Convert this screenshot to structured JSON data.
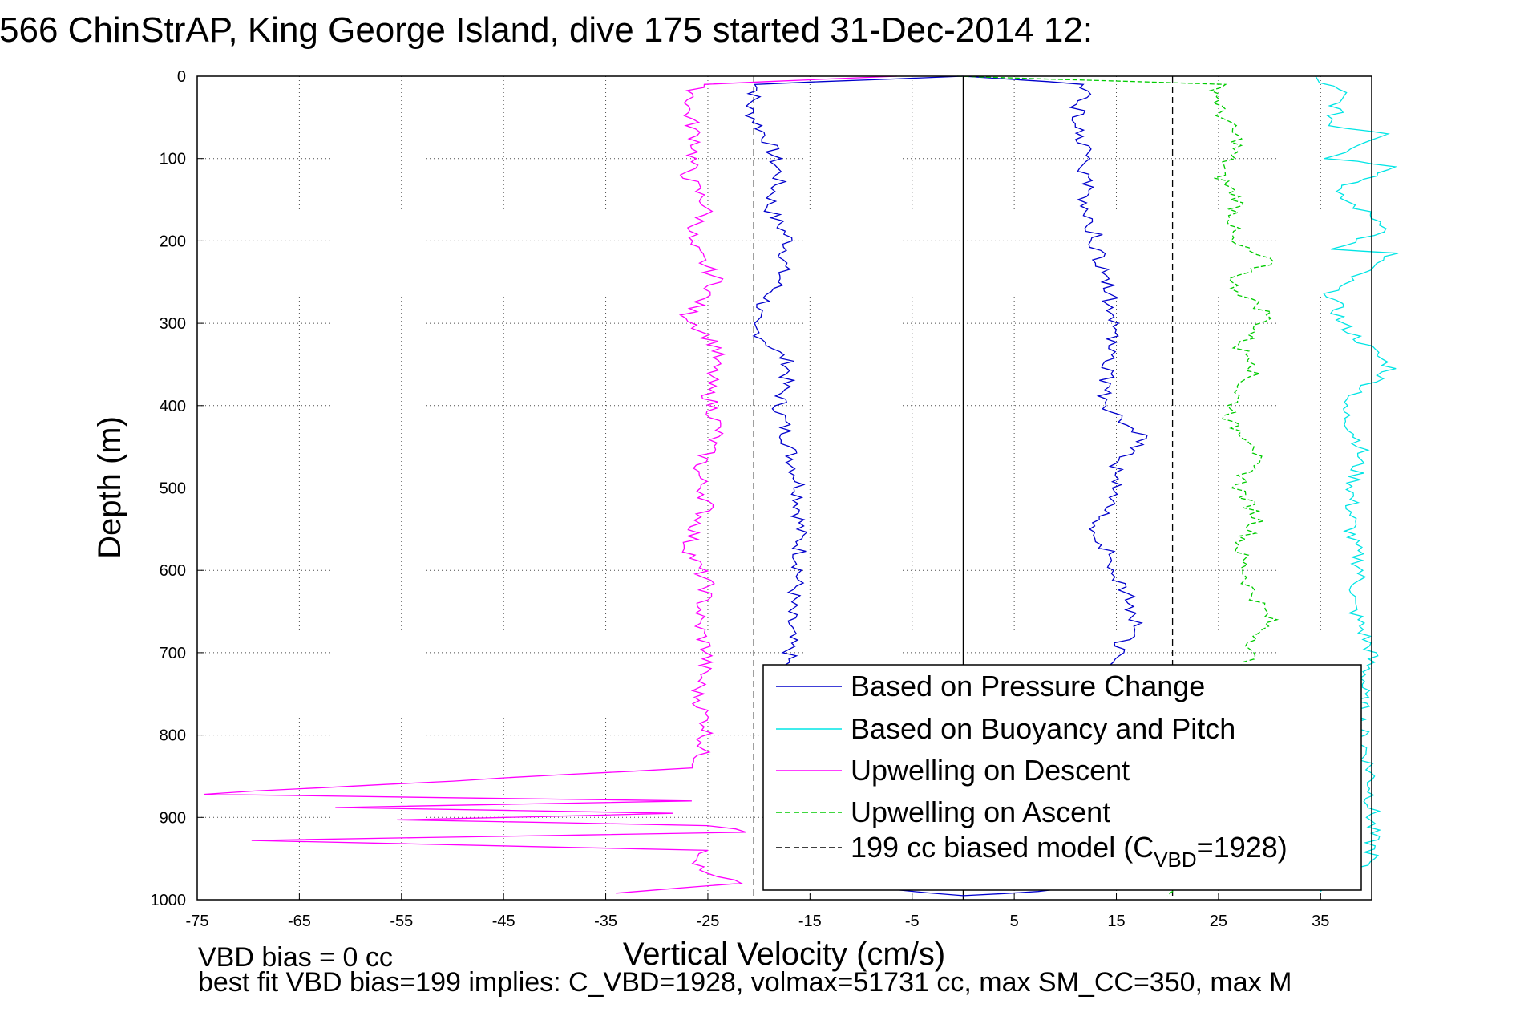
{
  "title": "566 ChinStrAP, King George Island, dive 175 started 31-Dec-2014 12:",
  "footnotes": {
    "line1": "VBD bias = 0 cc",
    "line2": "best fit VBD bias=199 implies: C_VBD=1928, volmax=51731 cc, max SM_CC=350, max M"
  },
  "chart_data": {
    "type": "line",
    "title": "566 ChinStrAP, King George Island, dive 175 started 31-Dec-2014 12:",
    "xlabel": "Vertical Velocity (cm/s)",
    "ylabel": "Depth (m)",
    "xlim": [
      -75,
      40
    ],
    "ylim": [
      0,
      1000
    ],
    "y_reversed": true,
    "grid": true,
    "legend_position": "bottom-right",
    "x_ticks": [
      -75,
      -65,
      -55,
      -45,
      -35,
      -25,
      -15,
      -5,
      5,
      15,
      25,
      35
    ],
    "y_ticks": [
      0,
      100,
      200,
      300,
      400,
      500,
      600,
      700,
      800,
      900,
      1000
    ],
    "reference_lines": [
      {
        "x": 0,
        "style": "solid",
        "color": "#000000"
      },
      {
        "x": -20.5,
        "style": "dashed",
        "color": "#000000"
      },
      {
        "x": 20.5,
        "style": "dashed",
        "color": "#000000"
      }
    ],
    "legend": [
      {
        "label": "Based on Pressure Change",
        "color": "#0000cc",
        "dash": "solid"
      },
      {
        "label": "Based on Buoyancy and Pitch",
        "color": "#00e5e5",
        "dash": "solid"
      },
      {
        "label": "Upwelling on Descent",
        "color": "#ff00ff",
        "dash": "solid"
      },
      {
        "label": "Upwelling on Ascent",
        "color": "#00cc00",
        "dash": "dashed"
      },
      {
        "label": "199 cc biased model (C",
        "sub": "VBD",
        "label_end": "=1928)",
        "color": "#000000",
        "dash": "dashed"
      }
    ],
    "series": [
      {
        "name": "Based on Pressure Change",
        "color": "#0000cc",
        "dash": "solid",
        "points": [
          [
            0,
            0
          ],
          [
            -20,
            10
          ],
          [
            -21,
            40
          ],
          [
            -19,
            80
          ],
          [
            -18,
            120
          ],
          [
            -19,
            160
          ],
          [
            -17,
            200
          ],
          [
            -18,
            250
          ],
          [
            -21,
            300
          ],
          [
            -17,
            350
          ],
          [
            -18,
            400
          ],
          [
            -17,
            450
          ],
          [
            -16,
            500
          ],
          [
            -16,
            550
          ],
          [
            -16,
            600
          ],
          [
            -17,
            650
          ],
          [
            -17,
            700
          ],
          [
            -18,
            750
          ],
          [
            -17,
            800
          ],
          [
            -16,
            850
          ],
          [
            -17,
            900
          ],
          [
            -18,
            950
          ],
          [
            -10,
            985
          ],
          [
            0,
            995
          ],
          [
            8,
            990
          ],
          [
            14,
            980
          ],
          [
            15,
            950
          ],
          [
            15,
            900
          ],
          [
            15,
            850
          ],
          [
            15,
            800
          ],
          [
            15,
            750
          ],
          [
            15,
            700
          ],
          [
            17,
            660
          ],
          [
            15,
            600
          ],
          [
            13,
            550
          ],
          [
            15,
            500
          ],
          [
            15,
            470
          ],
          [
            18,
            440
          ],
          [
            14,
            400
          ],
          [
            14,
            350
          ],
          [
            15,
            300
          ],
          [
            14,
            250
          ],
          [
            13,
            200
          ],
          [
            12,
            150
          ],
          [
            12,
            100
          ],
          [
            11,
            50
          ],
          [
            12,
            10
          ],
          [
            0,
            0
          ]
        ]
      },
      {
        "name": "Based on Buoyancy and Pitch",
        "color": "#00e5e5",
        "dash": "solid",
        "points": [
          [
            34,
            0
          ],
          [
            37,
            20
          ],
          [
            36,
            60
          ],
          [
            42,
            70
          ],
          [
            36,
            100
          ],
          [
            43,
            110
          ],
          [
            36,
            140
          ],
          [
            42,
            185
          ],
          [
            36,
            210
          ],
          [
            42,
            215
          ],
          [
            36,
            260
          ],
          [
            37,
            300
          ],
          [
            42,
            355
          ],
          [
            37,
            400
          ],
          [
            39,
            450
          ],
          [
            38,
            510
          ],
          [
            38,
            560
          ],
          [
            39,
            600
          ],
          [
            38,
            640
          ],
          [
            40,
            700
          ],
          [
            39,
            750
          ],
          [
            39,
            800
          ],
          [
            40,
            850
          ],
          [
            40,
            900
          ],
          [
            40,
            950
          ],
          [
            35,
            990
          ]
        ]
      },
      {
        "name": "Upwelling on Descent",
        "color": "#ff00ff",
        "dash": "solid",
        "points": [
          [
            -6,
            0
          ],
          [
            -26,
            10
          ],
          [
            -27,
            40
          ],
          [
            -26,
            80
          ],
          [
            -27,
            120
          ],
          [
            -25,
            160
          ],
          [
            -27,
            200
          ],
          [
            -24,
            250
          ],
          [
            -27,
            290
          ],
          [
            -24,
            330
          ],
          [
            -25,
            380
          ],
          [
            -24,
            430
          ],
          [
            -26,
            480
          ],
          [
            -25,
            520
          ],
          [
            -27,
            570
          ],
          [
            -25,
            620
          ],
          [
            -26,
            660
          ],
          [
            -25,
            700
          ],
          [
            -26,
            750
          ],
          [
            -25,
            790
          ],
          [
            -26,
            840
          ],
          [
            -75,
            872
          ],
          [
            -27,
            880
          ],
          [
            -62,
            888
          ],
          [
            -28,
            895
          ],
          [
            -55,
            903
          ],
          [
            -25,
            910
          ],
          [
            -21,
            918
          ],
          [
            -70,
            928
          ],
          [
            -25,
            940
          ],
          [
            -26,
            960
          ],
          [
            -22,
            980
          ],
          [
            -34,
            992
          ]
        ]
      },
      {
        "name": "Upwelling on Ascent",
        "color": "#00cc00",
        "dash": "dashed",
        "points": [
          [
            0,
            0
          ],
          [
            25,
            10
          ],
          [
            25,
            40
          ],
          [
            27,
            80
          ],
          [
            25,
            120
          ],
          [
            27,
            150
          ],
          [
            26,
            200
          ],
          [
            30,
            225
          ],
          [
            26,
            250
          ],
          [
            30,
            290
          ],
          [
            27,
            330
          ],
          [
            29,
            350
          ],
          [
            27,
            380
          ],
          [
            26,
            420
          ],
          [
            29,
            450
          ],
          [
            27,
            500
          ],
          [
            29,
            540
          ],
          [
            27,
            570
          ],
          [
            28,
            620
          ],
          [
            30,
            660
          ],
          [
            28,
            700
          ],
          [
            28,
            750
          ],
          [
            29,
            800
          ],
          [
            29,
            850
          ],
          [
            29,
            900
          ],
          [
            28,
            950
          ],
          [
            20,
            995
          ]
        ]
      }
    ]
  }
}
